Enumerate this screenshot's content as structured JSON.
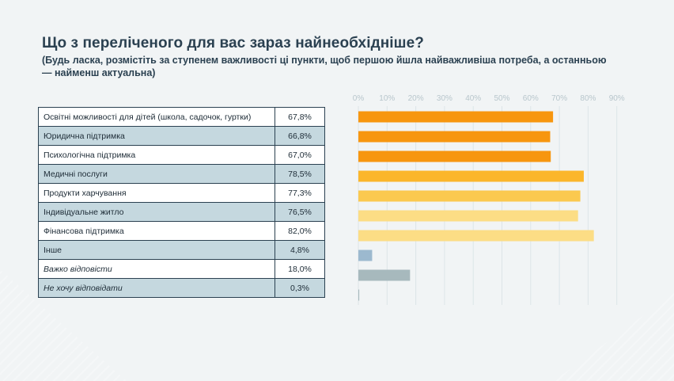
{
  "title": "Що з переліченого для вас зараз найнеобхідніше?",
  "subtitle": "(Будь ласка, розмістіть за ступенем важливості ці пункти, щоб першою йшла найважливіша потреба, а останньою — найменш актуальна)",
  "chart_data": {
    "type": "bar",
    "orientation": "horizontal",
    "x_ticks": [
      "0%",
      "10%",
      "20%",
      "30%",
      "40%",
      "50%",
      "60%",
      "70%",
      "80%",
      "90%"
    ],
    "xlim": [
      0,
      90
    ],
    "grid": true,
    "categories": [
      "Освітні можливості для дітей (школа, садочок, гуртки)",
      "Юридична підтримка",
      "Психологічна підтримка",
      "Медичні послуги",
      "Продукти харчування",
      "Індивідуальне житло",
      "Фінансова підтримка",
      "Інше",
      "Важко відповісти",
      "Не хочу відповідати"
    ],
    "values": [
      67.8,
      66.8,
      67.0,
      78.5,
      77.3,
      76.5,
      82.0,
      4.8,
      18.0,
      0.3
    ],
    "value_labels": [
      "67,8%",
      "66,8%",
      "67,0%",
      "78,5%",
      "77,3%",
      "76,5%",
      "82,0%",
      "4,8%",
      "18,0%",
      "0,3%"
    ],
    "colors": [
      "#f7960f",
      "#f7960f",
      "#f7960f",
      "#fbb62b",
      "#fbc94f",
      "#fcdd85",
      "#fcdd85",
      "#9cb9cf",
      "#a7b9bd",
      "#a7b9bd"
    ],
    "italic_rows": [
      8,
      9
    ]
  }
}
